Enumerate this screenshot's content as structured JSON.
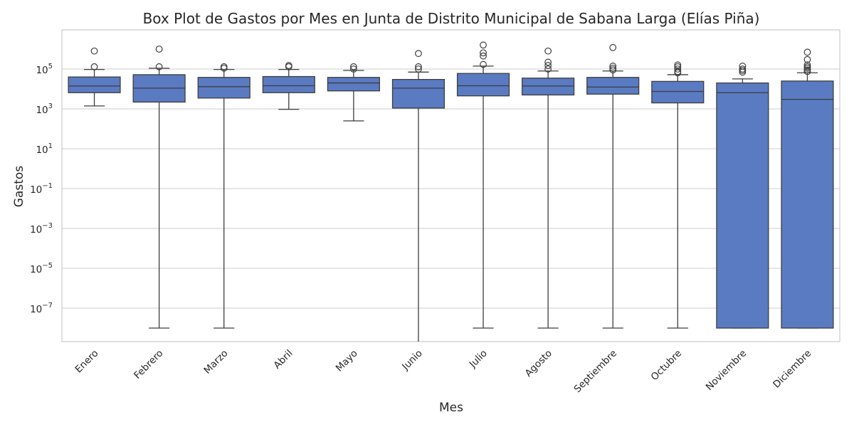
{
  "chart_data": {
    "type": "box",
    "title": "Box Plot de Gastos por Mes en Junta de Distrito Municipal de Sabana Larga (Elías Piña)",
    "xlabel": "Mes",
    "ylabel": "Gastos",
    "yscale": "log",
    "ylim": [
      1e-09,
      5000000.0
    ],
    "yticks": [
      {
        "value": 100000,
        "base": "10",
        "exp": "5"
      },
      {
        "value": 1000,
        "base": "10",
        "exp": "3"
      },
      {
        "value": 10,
        "base": "10",
        "exp": "1"
      },
      {
        "value": 0.1,
        "base": "10",
        "exp": "−1"
      },
      {
        "value": 0.001,
        "base": "10",
        "exp": "−3"
      },
      {
        "value": 1e-05,
        "base": "10",
        "exp": "−5"
      },
      {
        "value": 1e-07,
        "base": "10",
        "exp": "−7"
      }
    ],
    "grid": true,
    "box_color": "#5a7bc2",
    "line_color": "#3d3d3d",
    "categories": [
      "Enero",
      "Febrero",
      "Marzo",
      "Abril",
      "Mayo",
      "Junio",
      "Julio",
      "Agosto",
      "Septiembre",
      "Octubre",
      "Noviembre",
      "Diciembre"
    ],
    "boxes": [
      {
        "label": "Enero",
        "whisker_low": 1400,
        "q1": 6500,
        "median": 14000,
        "q3": 40000,
        "whisker_high": 95000,
        "outliers": [
          130000,
          800000
        ]
      },
      {
        "label": "Febrero",
        "whisker_low": 1e-08,
        "q1": 2200,
        "median": 11000,
        "q3": 52000,
        "whisker_high": 110000,
        "outliers": [
          130000,
          1000000
        ]
      },
      {
        "label": "Marzo",
        "whisker_low": 1e-08,
        "q1": 3500,
        "median": 13000,
        "q3": 38000,
        "whisker_high": 95000,
        "outliers": [
          110000,
          130000
        ]
      },
      {
        "label": "Abril",
        "whisker_low": 950,
        "q1": 6500,
        "median": 14500,
        "q3": 42000,
        "whisker_high": 95000,
        "outliers": [
          130000,
          150000
        ]
      },
      {
        "label": "Mayo",
        "whisker_low": 250,
        "q1": 8000,
        "median": 20000,
        "q3": 38000,
        "whisker_high": 85000,
        "outliers": [
          100000,
          130000
        ]
      },
      {
        "label": "Junio",
        "whisker_low": 1e-09,
        "q1": 1100,
        "median": 11000,
        "q3": 30000,
        "whisker_high": 70000,
        "outliers": [
          100000,
          130000,
          600000
        ]
      },
      {
        "label": "Julio",
        "whisker_low": 1e-08,
        "q1": 4500,
        "median": 14500,
        "q3": 60000,
        "whisker_high": 140000,
        "outliers": [
          170000,
          450000,
          650000,
          1600000
        ]
      },
      {
        "label": "Agosto",
        "whisker_low": 1e-08,
        "q1": 5000,
        "median": 14000,
        "q3": 35000,
        "whisker_high": 80000,
        "outliers": [
          100000,
          150000,
          220000,
          800000
        ]
      },
      {
        "label": "Septiembre",
        "whisker_low": 1e-08,
        "q1": 5500,
        "median": 12500,
        "q3": 38000,
        "whisker_high": 80000,
        "outliers": [
          90000,
          110000,
          140000,
          1200000
        ]
      },
      {
        "label": "Octubre",
        "whisker_low": 1e-08,
        "q1": 2000,
        "median": 7500,
        "q3": 24000,
        "whisker_high": 52000,
        "outliers": [
          65000,
          75000,
          100000,
          130000,
          160000
        ]
      },
      {
        "label": "Noviembre",
        "whisker_low": 1e-08,
        "q1": 1e-08,
        "median": 6500,
        "q3": 20000,
        "whisker_high": 32000,
        "outliers": [
          70000,
          85000,
          100000,
          140000
        ]
      },
      {
        "label": "Diciembre",
        "whisker_low": 1e-08,
        "q1": 1e-08,
        "median": 3000,
        "q3": 25000,
        "whisker_high": 65000,
        "outliers": [
          75000,
          90000,
          110000,
          130000,
          160000,
          300000,
          700000
        ]
      }
    ]
  }
}
